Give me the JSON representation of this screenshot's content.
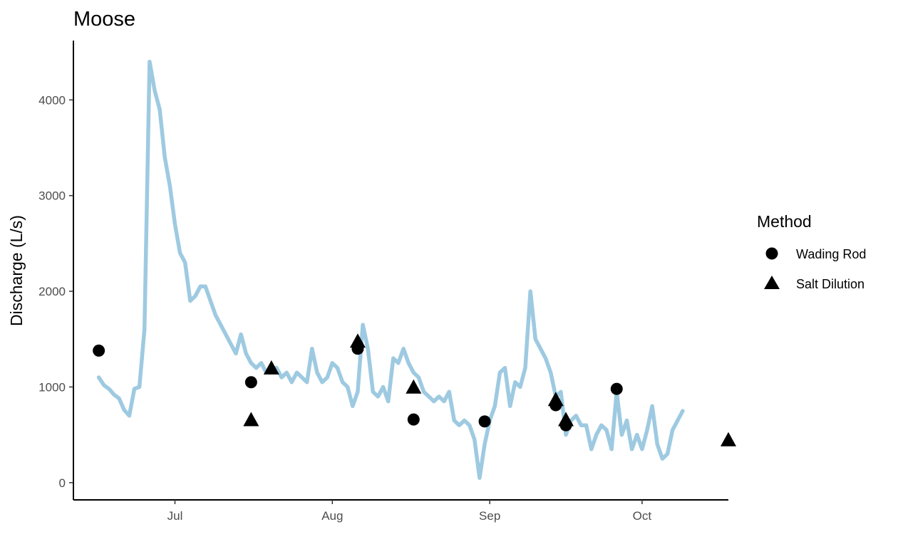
{
  "chart_data": {
    "type": "line",
    "title": "Moose",
    "xlabel": "",
    "ylabel": "Discharge (L/s)",
    "x_ticks": [
      "Jul",
      "Aug",
      "Sep",
      "Oct"
    ],
    "y_ticks": [
      0,
      1000,
      2000,
      3000,
      4000
    ],
    "ylim": [
      -180,
      4620
    ],
    "xlim": [
      "2019-06-11",
      "2019-10-18"
    ],
    "grid": false,
    "legend": {
      "title": "Method",
      "position": "right",
      "entries": [
        {
          "label": "Wading Rod",
          "shape": "circle"
        },
        {
          "label": "Salt Dilution",
          "shape": "triangle"
        }
      ]
    },
    "colors": {
      "line": "#9ecae1",
      "points": "#000000",
      "axis": "#000000"
    },
    "series": [
      {
        "type": "line",
        "points": [
          [
            "2019-06-16",
            1100
          ],
          [
            "2019-06-17",
            1020
          ],
          [
            "2019-06-18",
            980
          ],
          [
            "2019-06-19",
            920
          ],
          [
            "2019-06-20",
            880
          ],
          [
            "2019-06-21",
            760
          ],
          [
            "2019-06-22",
            700
          ],
          [
            "2019-06-23",
            980
          ],
          [
            "2019-06-24",
            1000
          ],
          [
            "2019-06-25",
            1600
          ],
          [
            "2019-06-26",
            4400
          ],
          [
            "2019-06-27",
            4100
          ],
          [
            "2019-06-28",
            3900
          ],
          [
            "2019-06-29",
            3400
          ],
          [
            "2019-06-30",
            3100
          ],
          [
            "2019-07-01",
            2700
          ],
          [
            "2019-07-02",
            2400
          ],
          [
            "2019-07-03",
            2300
          ],
          [
            "2019-07-04",
            1900
          ],
          [
            "2019-07-05",
            1950
          ],
          [
            "2019-07-06",
            2050
          ],
          [
            "2019-07-07",
            2050
          ],
          [
            "2019-07-08",
            1900
          ],
          [
            "2019-07-09",
            1750
          ],
          [
            "2019-07-10",
            1650
          ],
          [
            "2019-07-11",
            1550
          ],
          [
            "2019-07-12",
            1450
          ],
          [
            "2019-07-13",
            1350
          ],
          [
            "2019-07-14",
            1550
          ],
          [
            "2019-07-15",
            1350
          ],
          [
            "2019-07-16",
            1250
          ],
          [
            "2019-07-17",
            1200
          ],
          [
            "2019-07-18",
            1250
          ],
          [
            "2019-07-19",
            1150
          ],
          [
            "2019-07-20",
            1180
          ],
          [
            "2019-07-21",
            1200
          ],
          [
            "2019-07-22",
            1100
          ],
          [
            "2019-07-23",
            1150
          ],
          [
            "2019-07-24",
            1050
          ],
          [
            "2019-07-25",
            1150
          ],
          [
            "2019-07-26",
            1100
          ],
          [
            "2019-07-27",
            1050
          ],
          [
            "2019-07-28",
            1400
          ],
          [
            "2019-07-29",
            1150
          ],
          [
            "2019-07-30",
            1050
          ],
          [
            "2019-07-31",
            1100
          ],
          [
            "2019-08-01",
            1250
          ],
          [
            "2019-08-02",
            1200
          ],
          [
            "2019-08-03",
            1050
          ],
          [
            "2019-08-04",
            1000
          ],
          [
            "2019-08-05",
            800
          ],
          [
            "2019-08-06",
            950
          ],
          [
            "2019-08-07",
            1650
          ],
          [
            "2019-08-08",
            1400
          ],
          [
            "2019-08-09",
            950
          ],
          [
            "2019-08-10",
            900
          ],
          [
            "2019-08-11",
            1000
          ],
          [
            "2019-08-12",
            850
          ],
          [
            "2019-08-13",
            1300
          ],
          [
            "2019-08-14",
            1250
          ],
          [
            "2019-08-15",
            1400
          ],
          [
            "2019-08-16",
            1250
          ],
          [
            "2019-08-17",
            1150
          ],
          [
            "2019-08-18",
            1100
          ],
          [
            "2019-08-19",
            950
          ],
          [
            "2019-08-20",
            900
          ],
          [
            "2019-08-21",
            850
          ],
          [
            "2019-08-22",
            900
          ],
          [
            "2019-08-23",
            850
          ],
          [
            "2019-08-24",
            950
          ],
          [
            "2019-08-25",
            650
          ],
          [
            "2019-08-26",
            600
          ],
          [
            "2019-08-27",
            650
          ],
          [
            "2019-08-28",
            600
          ],
          [
            "2019-08-29",
            450
          ],
          [
            "2019-08-30",
            50
          ],
          [
            "2019-08-31",
            400
          ],
          [
            "2019-09-01",
            650
          ],
          [
            "2019-09-02",
            800
          ],
          [
            "2019-09-03",
            1150
          ],
          [
            "2019-09-04",
            1200
          ],
          [
            "2019-09-05",
            800
          ],
          [
            "2019-09-06",
            1050
          ],
          [
            "2019-09-07",
            1000
          ],
          [
            "2019-09-08",
            1200
          ],
          [
            "2019-09-09",
            2000
          ],
          [
            "2019-09-10",
            1500
          ],
          [
            "2019-09-11",
            1400
          ],
          [
            "2019-09-12",
            1300
          ],
          [
            "2019-09-13",
            1150
          ],
          [
            "2019-09-14",
            900
          ],
          [
            "2019-09-15",
            950
          ],
          [
            "2019-09-16",
            500
          ],
          [
            "2019-09-17",
            650
          ],
          [
            "2019-09-18",
            700
          ],
          [
            "2019-09-19",
            600
          ],
          [
            "2019-09-20",
            600
          ],
          [
            "2019-09-21",
            350
          ],
          [
            "2019-09-22",
            500
          ],
          [
            "2019-09-23",
            600
          ],
          [
            "2019-09-24",
            550
          ],
          [
            "2019-09-25",
            350
          ],
          [
            "2019-09-26",
            950
          ],
          [
            "2019-09-27",
            500
          ],
          [
            "2019-09-28",
            650
          ],
          [
            "2019-09-29",
            350
          ],
          [
            "2019-09-30",
            500
          ],
          [
            "2019-10-01",
            350
          ],
          [
            "2019-10-02",
            550
          ],
          [
            "2019-10-03",
            800
          ],
          [
            "2019-10-04",
            400
          ],
          [
            "2019-10-05",
            250
          ],
          [
            "2019-10-06",
            300
          ],
          [
            "2019-10-07",
            550
          ],
          [
            "2019-10-08",
            650
          ],
          [
            "2019-10-09",
            750
          ]
        ]
      },
      {
        "name": "Wading Rod",
        "type": "scatter",
        "points": [
          [
            "2019-06-16",
            1380
          ],
          [
            "2019-07-16",
            1050
          ],
          [
            "2019-08-06",
            1400
          ],
          [
            "2019-08-17",
            660
          ],
          [
            "2019-08-31",
            640
          ],
          [
            "2019-09-14",
            810
          ],
          [
            "2019-09-16",
            600
          ],
          [
            "2019-09-26",
            980
          ]
        ]
      },
      {
        "name": "Salt Dilution",
        "type": "scatter",
        "points": [
          [
            "2019-07-16",
            650
          ],
          [
            "2019-07-20",
            1190
          ],
          [
            "2019-08-06",
            1470
          ],
          [
            "2019-08-17",
            990
          ],
          [
            "2019-09-14",
            860
          ],
          [
            "2019-09-16",
            650
          ],
          [
            "2019-10-18",
            440
          ]
        ]
      }
    ]
  }
}
